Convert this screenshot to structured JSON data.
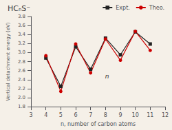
{
  "chart_data": {
    "type": "line",
    "title": "HCₙS⁻",
    "x": [
      4,
      5,
      6,
      7,
      8,
      9,
      10,
      11
    ],
    "series": [
      {
        "name": "Expt.",
        "color": "#222222",
        "marker": "square",
        "values": [
          2.88,
          2.25,
          3.13,
          2.63,
          3.32,
          2.95,
          3.46,
          3.19
        ]
      },
      {
        "name": "Theo.",
        "color": "#cc0000",
        "marker": "circle",
        "values": [
          2.93,
          2.14,
          3.19,
          2.55,
          3.3,
          2.83,
          3.47,
          3.05
        ]
      }
    ],
    "xlabel": "n, number of carbon atoms",
    "ylabel": "Vertical detachment energy (eV)",
    "xlim": [
      3,
      12
    ],
    "ylim": [
      1.8,
      3.8
    ],
    "xticks": [
      3,
      4,
      5,
      6,
      7,
      8,
      9,
      10,
      11,
      12
    ],
    "yticks": [
      1.8,
      {
        "value": 2,
        "label": "2.0"
      },
      2.2,
      2.4,
      2.6,
      2.8,
      {
        "value": 3,
        "label": "3.0"
      },
      3.2,
      3.4,
      3.6,
      3.8
    ],
    "annotations": [
      {
        "text": "n",
        "x": 8.1,
        "y": 2.41
      }
    ],
    "legend": "upper right",
    "grid": false
  }
}
